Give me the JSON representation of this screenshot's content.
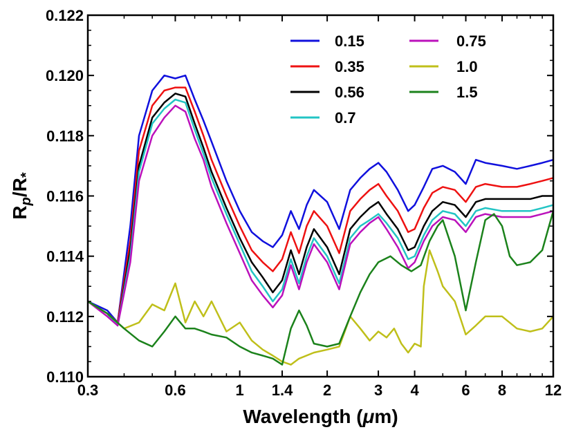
{
  "chart_data": {
    "type": "line",
    "title": "",
    "xlabel": "Wavelength (μm)",
    "xlabel_pre": "Wavelength (",
    "xlabel_mu": "μ",
    "xlabel_post": "m)",
    "ylabel": "Rp/R*",
    "ylabel_main": "R",
    "ylabel_sub1": "p",
    "ylabel_slash": "/R",
    "ylabel_sub2": "*",
    "xscale": "log",
    "xlim": [
      0.3,
      12
    ],
    "ylim": [
      0.11,
      0.122
    ],
    "xticks": [
      0.3,
      0.6,
      1,
      1.4,
      2,
      3,
      4,
      6,
      8,
      12
    ],
    "xtick_labels": [
      "0.3",
      "0.6",
      "1",
      "1.4",
      "2",
      "3",
      "4",
      "6",
      "8",
      "12"
    ],
    "yticks": [
      0.11,
      0.112,
      0.114,
      0.116,
      0.118,
      0.12,
      0.122
    ],
    "ytick_labels": [
      "0.110",
      "0.112",
      "0.114",
      "0.116",
      "0.118",
      "0.120",
      "0.122"
    ],
    "legend_position": "top-right",
    "series": [
      {
        "name": "0.15",
        "color": "#1010dd",
        "x": [
          0.3,
          0.35,
          0.38,
          0.42,
          0.45,
          0.5,
          0.55,
          0.6,
          0.65,
          0.7,
          0.75,
          0.8,
          0.9,
          1.0,
          1.1,
          1.2,
          1.3,
          1.4,
          1.5,
          1.6,
          1.7,
          1.8,
          2.0,
          2.2,
          2.4,
          2.6,
          2.8,
          3.0,
          3.2,
          3.5,
          3.8,
          4.0,
          4.3,
          4.6,
          5.0,
          5.5,
          6.0,
          6.5,
          7.0,
          8.0,
          9.0,
          10.0,
          11.0,
          12.0
        ],
        "y": [
          0.1125,
          0.1122,
          0.1118,
          0.115,
          0.118,
          0.1195,
          0.12,
          0.1199,
          0.12,
          0.1192,
          0.1185,
          0.1178,
          0.1165,
          0.1155,
          0.1148,
          0.1145,
          0.1143,
          0.1147,
          0.1155,
          0.1149,
          0.1157,
          0.1162,
          0.1158,
          0.1149,
          0.1162,
          0.1166,
          0.1169,
          0.1171,
          0.1168,
          0.1162,
          0.1155,
          0.1157,
          0.1163,
          0.1169,
          0.117,
          0.1168,
          0.1164,
          0.1172,
          0.1171,
          0.117,
          0.1169,
          0.117,
          0.1171,
          0.1172
        ]
      },
      {
        "name": "0.35",
        "color": "#ee1111",
        "x": [
          0.3,
          0.35,
          0.38,
          0.42,
          0.45,
          0.5,
          0.55,
          0.6,
          0.65,
          0.7,
          0.75,
          0.8,
          0.9,
          1.0,
          1.1,
          1.2,
          1.3,
          1.4,
          1.5,
          1.6,
          1.7,
          1.8,
          2.0,
          2.2,
          2.4,
          2.6,
          2.8,
          3.0,
          3.2,
          3.5,
          3.8,
          4.0,
          4.3,
          4.6,
          5.0,
          5.5,
          6.0,
          6.5,
          7.0,
          8.0,
          9.0,
          10.0,
          11.0,
          12.0
        ],
        "y": [
          0.1125,
          0.1121,
          0.1118,
          0.1145,
          0.1175,
          0.119,
          0.1195,
          0.1196,
          0.1196,
          0.1188,
          0.118,
          0.1172,
          0.116,
          0.115,
          0.1142,
          0.1138,
          0.1135,
          0.1139,
          0.1148,
          0.1141,
          0.115,
          0.1155,
          0.115,
          0.1141,
          0.1155,
          0.1159,
          0.1162,
          0.1164,
          0.116,
          0.1155,
          0.1148,
          0.1149,
          0.1156,
          0.1161,
          0.1163,
          0.1162,
          0.1158,
          0.1163,
          0.1164,
          0.1163,
          0.1163,
          0.1164,
          0.1165,
          0.1166
        ]
      },
      {
        "name": "0.56",
        "color": "#000000",
        "x": [
          0.3,
          0.35,
          0.38,
          0.42,
          0.45,
          0.5,
          0.55,
          0.6,
          0.65,
          0.7,
          0.75,
          0.8,
          0.9,
          1.0,
          1.1,
          1.2,
          1.3,
          1.4,
          1.5,
          1.6,
          1.7,
          1.8,
          2.0,
          2.2,
          2.4,
          2.6,
          2.8,
          3.0,
          3.2,
          3.5,
          3.8,
          4.0,
          4.3,
          4.6,
          5.0,
          5.5,
          6.0,
          6.5,
          7.0,
          8.0,
          9.0,
          10.0,
          11.0,
          12.0
        ],
        "y": [
          0.1125,
          0.1121,
          0.1117,
          0.1142,
          0.117,
          0.1186,
          0.1191,
          0.1194,
          0.1193,
          0.1184,
          0.1176,
          0.1168,
          0.1156,
          0.1146,
          0.1138,
          0.1133,
          0.1128,
          0.1132,
          0.1142,
          0.1134,
          0.1143,
          0.1149,
          0.1143,
          0.1134,
          0.1149,
          0.1153,
          0.1156,
          0.1158,
          0.1154,
          0.1149,
          0.1142,
          0.1143,
          0.115,
          0.1155,
          0.1158,
          0.1157,
          0.1153,
          0.1158,
          0.1159,
          0.1159,
          0.1159,
          0.1159,
          0.116,
          0.116
        ]
      },
      {
        "name": "0.7",
        "color": "#22c4c4",
        "x": [
          0.3,
          0.35,
          0.38,
          0.42,
          0.45,
          0.5,
          0.55,
          0.6,
          0.65,
          0.7,
          0.75,
          0.8,
          0.9,
          1.0,
          1.1,
          1.2,
          1.3,
          1.4,
          1.5,
          1.6,
          1.7,
          1.8,
          2.0,
          2.2,
          2.4,
          2.6,
          2.8,
          3.0,
          3.2,
          3.5,
          3.8,
          4.0,
          4.3,
          4.6,
          5.0,
          5.5,
          6.0,
          6.5,
          7.0,
          8.0,
          9.0,
          10.0,
          11.0,
          12.0
        ],
        "y": [
          0.1125,
          0.1121,
          0.1117,
          0.114,
          0.1168,
          0.1184,
          0.1189,
          0.1192,
          0.1191,
          0.1182,
          0.1174,
          0.1166,
          0.1154,
          0.1144,
          0.1135,
          0.113,
          0.1125,
          0.1129,
          0.1139,
          0.1131,
          0.114,
          0.1146,
          0.114,
          0.1131,
          0.1146,
          0.115,
          0.1152,
          0.1154,
          0.1151,
          0.1146,
          0.1139,
          0.114,
          0.1147,
          0.1152,
          0.1155,
          0.1154,
          0.115,
          0.1155,
          0.1156,
          0.1155,
          0.1155,
          0.1155,
          0.1156,
          0.1157
        ]
      },
      {
        "name": "0.75",
        "color": "#bb11bb",
        "x": [
          0.3,
          0.35,
          0.38,
          0.42,
          0.45,
          0.5,
          0.55,
          0.6,
          0.65,
          0.7,
          0.75,
          0.8,
          0.9,
          1.0,
          1.1,
          1.2,
          1.3,
          1.4,
          1.5,
          1.6,
          1.7,
          1.8,
          2.0,
          2.2,
          2.4,
          2.6,
          2.8,
          3.0,
          3.2,
          3.5,
          3.8,
          4.0,
          4.3,
          4.6,
          5.0,
          5.5,
          6.0,
          6.5,
          7.0,
          8.0,
          9.0,
          10.0,
          11.0,
          12.0
        ],
        "y": [
          0.1125,
          0.112,
          0.1117,
          0.1138,
          0.1165,
          0.118,
          0.1186,
          0.119,
          0.1188,
          0.1179,
          0.1172,
          0.1163,
          0.1151,
          0.1141,
          0.1132,
          0.1127,
          0.1123,
          0.1127,
          0.1137,
          0.1129,
          0.1138,
          0.1144,
          0.1138,
          0.1129,
          0.1144,
          0.1148,
          0.1151,
          0.1153,
          0.1149,
          0.1143,
          0.1136,
          0.1138,
          0.1145,
          0.115,
          0.1153,
          0.1152,
          0.1148,
          0.1153,
          0.1154,
          0.1153,
          0.1153,
          0.1153,
          0.1154,
          0.1155
        ]
      },
      {
        "name": "1.0",
        "color": "#bfbf1a",
        "x": [
          0.3,
          0.35,
          0.4,
          0.45,
          0.5,
          0.55,
          0.6,
          0.65,
          0.7,
          0.75,
          0.8,
          0.9,
          1.0,
          1.1,
          1.2,
          1.3,
          1.4,
          1.5,
          1.6,
          1.8,
          2.0,
          2.2,
          2.3,
          2.4,
          2.6,
          2.8,
          3.0,
          3.2,
          3.4,
          3.6,
          3.8,
          4.0,
          4.2,
          4.3,
          4.5,
          4.8,
          5.0,
          5.5,
          6.0,
          6.5,
          7.0,
          8.0,
          9.0,
          10.0,
          11.0,
          12.0
        ],
        "y": [
          0.1125,
          0.1121,
          0.1116,
          0.1118,
          0.1124,
          0.1122,
          0.1131,
          0.1118,
          0.1125,
          0.112,
          0.1125,
          0.1115,
          0.1118,
          0.1112,
          0.1109,
          0.1107,
          0.1105,
          0.1104,
          0.1106,
          0.1108,
          0.1109,
          0.111,
          0.1115,
          0.112,
          0.1116,
          0.1112,
          0.1115,
          0.1113,
          0.1116,
          0.1111,
          0.1108,
          0.1111,
          0.111,
          0.113,
          0.1142,
          0.1135,
          0.113,
          0.1125,
          0.1114,
          0.1117,
          0.112,
          0.112,
          0.1116,
          0.1115,
          0.1116,
          0.112
        ]
      },
      {
        "name": "1.5",
        "color": "#1b821b",
        "x": [
          0.3,
          0.35,
          0.4,
          0.45,
          0.5,
          0.55,
          0.6,
          0.65,
          0.7,
          0.75,
          0.8,
          0.9,
          1.0,
          1.1,
          1.2,
          1.3,
          1.4,
          1.5,
          1.6,
          1.7,
          1.8,
          2.0,
          2.2,
          2.4,
          2.6,
          2.8,
          3.0,
          3.3,
          3.6,
          3.9,
          4.2,
          4.5,
          4.8,
          5.0,
          5.5,
          6.0,
          6.5,
          7.0,
          7.5,
          8.0,
          8.5,
          9.0,
          10.0,
          11.0,
          12.0
        ],
        "y": [
          0.1125,
          0.1121,
          0.1116,
          0.1112,
          0.111,
          0.1115,
          0.112,
          0.1116,
          0.1116,
          0.1115,
          0.1114,
          0.1113,
          0.111,
          0.1108,
          0.1107,
          0.1106,
          0.1104,
          0.1116,
          0.1122,
          0.1117,
          0.1111,
          0.111,
          0.1111,
          0.112,
          0.1128,
          0.1134,
          0.1138,
          0.114,
          0.1137,
          0.1135,
          0.1137,
          0.1145,
          0.115,
          0.1152,
          0.114,
          0.1122,
          0.1138,
          0.1152,
          0.1154,
          0.115,
          0.114,
          0.1137,
          0.1138,
          0.1142,
          0.1155
        ]
      }
    ]
  }
}
